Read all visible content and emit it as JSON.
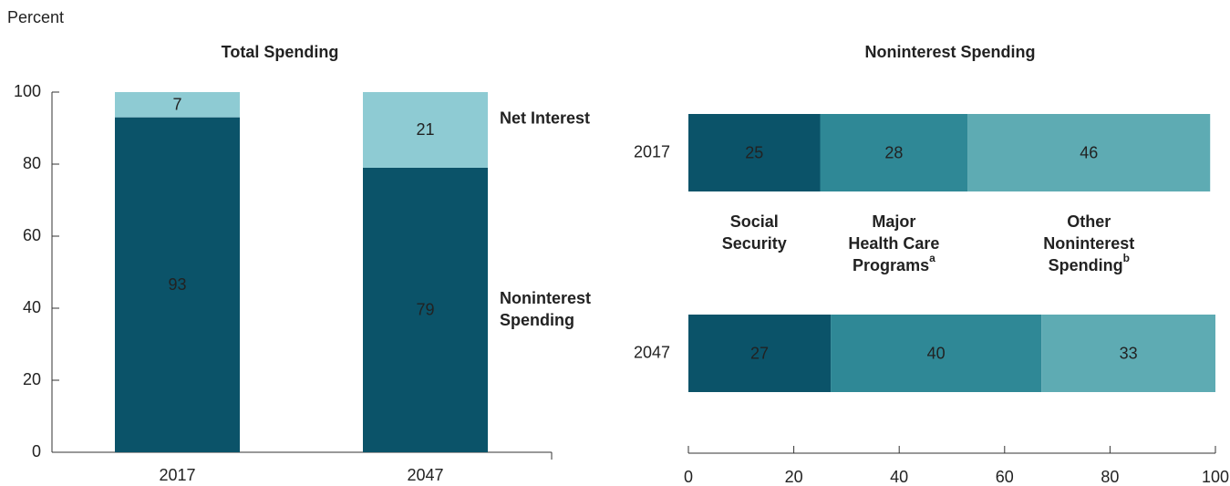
{
  "chart_data": [
    {
      "type": "stacked_bar",
      "title": "Total Spending",
      "y_label": "Percent",
      "categories": [
        "2017",
        "2047"
      ],
      "series": [
        {
          "name": "Noninterest Spending",
          "color": "#0b5369",
          "values": [
            93,
            79
          ]
        },
        {
          "name": "Net Interest",
          "color": "#8ecbd3",
          "values": [
            7,
            21
          ]
        }
      ],
      "ylim": [
        0,
        100
      ],
      "yticks": [
        0,
        20,
        40,
        60,
        80,
        100
      ]
    },
    {
      "type": "stacked_barh",
      "title": "Noninterest Spending",
      "categories": [
        "2017",
        "2047"
      ],
      "series": [
        {
          "name": "Social Security",
          "color": "#0b5369",
          "values": [
            25,
            27
          ]
        },
        {
          "name": "Major Health Care Programs",
          "note": "a",
          "color": "#2f8896",
          "values": [
            28,
            40
          ]
        },
        {
          "name": "Other Noninterest Spending",
          "note": "b",
          "color": "#5eabb3",
          "values": [
            46,
            33
          ]
        }
      ],
      "xlim": [
        0,
        100
      ],
      "xticks": [
        0,
        20,
        40,
        60,
        80,
        100
      ]
    }
  ]
}
